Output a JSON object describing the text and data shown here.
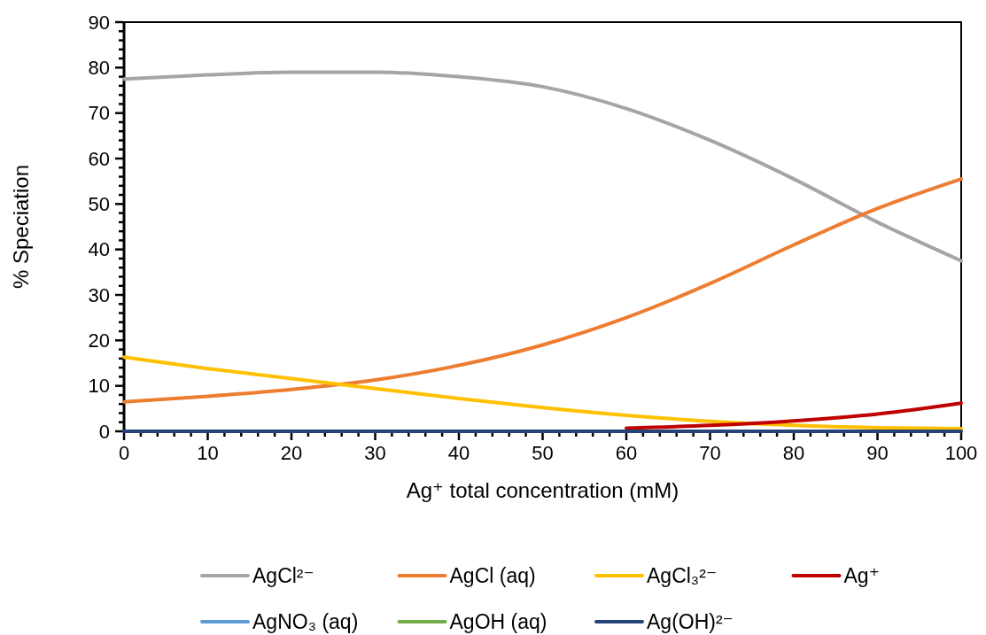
{
  "chart_data": {
    "type": "line",
    "xlabel": "Ag⁺ total concentration (mM)",
    "ylabel": "% Speciation",
    "x": [
      0,
      10,
      20,
      30,
      40,
      50,
      60,
      70,
      80,
      90,
      100
    ],
    "xlim": [
      0,
      100
    ],
    "xticks": [
      0,
      {
        "value": 2,
        "label": null
      },
      {
        "value": 4,
        "label": null
      },
      {
        "value": 6,
        "label": null
      },
      {
        "value": 8,
        "label": null
      },
      10,
      {
        "value": 12,
        "label": null
      },
      {
        "value": 14,
        "label": null
      },
      {
        "value": 16,
        "label": null
      },
      {
        "value": 18,
        "label": null
      },
      20,
      {
        "value": 22,
        "label": null
      },
      {
        "value": 24,
        "label": null
      },
      {
        "value": 26,
        "label": null
      },
      {
        "value": 28,
        "label": null
      },
      30,
      {
        "value": 32,
        "label": null
      },
      {
        "value": 34,
        "label": null
      },
      {
        "value": 36,
        "label": null
      },
      {
        "value": 38,
        "label": null
      },
      40,
      {
        "value": 42,
        "label": null
      },
      {
        "value": 44,
        "label": null
      },
      {
        "value": 46,
        "label": null
      },
      {
        "value": 48,
        "label": null
      },
      50,
      {
        "value": 52,
        "label": null
      },
      {
        "value": 54,
        "label": null
      },
      {
        "value": 56,
        "label": null
      },
      {
        "value": 58,
        "label": null
      },
      60,
      {
        "value": 62,
        "label": null
      },
      {
        "value": 64,
        "label": null
      },
      {
        "value": 66,
        "label": null
      },
      {
        "value": 68,
        "label": null
      },
      70,
      {
        "value": 72,
        "label": null
      },
      {
        "value": 74,
        "label": null
      },
      {
        "value": 76,
        "label": null
      },
      {
        "value": 78,
        "label": null
      },
      80,
      {
        "value": 82,
        "label": null
      },
      {
        "value": 84,
        "label": null
      },
      {
        "value": 86,
        "label": null
      },
      {
        "value": 88,
        "label": null
      },
      90,
      {
        "value": 92,
        "label": null
      },
      {
        "value": 94,
        "label": null
      },
      {
        "value": 96,
        "label": null
      },
      {
        "value": 98,
        "label": null
      },
      100
    ],
    "ylim": [
      0,
      90
    ],
    "yticks": [
      0,
      {
        "value": 2,
        "label": null
      },
      {
        "value": 4,
        "label": null
      },
      {
        "value": 6,
        "label": null
      },
      {
        "value": 8,
        "label": null
      },
      10,
      {
        "value": 12,
        "label": null
      },
      {
        "value": 14,
        "label": null
      },
      {
        "value": 16,
        "label": null
      },
      {
        "value": 18,
        "label": null
      },
      20,
      {
        "value": 22,
        "label": null
      },
      {
        "value": 24,
        "label": null
      },
      {
        "value": 26,
        "label": null
      },
      {
        "value": 28,
        "label": null
      },
      30,
      {
        "value": 32,
        "label": null
      },
      {
        "value": 34,
        "label": null
      },
      {
        "value": 36,
        "label": null
      },
      {
        "value": 38,
        "label": null
      },
      40,
      {
        "value": 42,
        "label": null
      },
      {
        "value": 44,
        "label": null
      },
      {
        "value": 46,
        "label": null
      },
      {
        "value": 48,
        "label": null
      },
      50,
      {
        "value": 52,
        "label": null
      },
      {
        "value": 54,
        "label": null
      },
      {
        "value": 56,
        "label": null
      },
      {
        "value": 58,
        "label": null
      },
      60,
      {
        "value": 62,
        "label": null
      },
      {
        "value": 64,
        "label": null
      },
      {
        "value": 66,
        "label": null
      },
      {
        "value": 68,
        "label": null
      },
      70,
      {
        "value": 72,
        "label": null
      },
      {
        "value": 74,
        "label": null
      },
      {
        "value": 76,
        "label": null
      },
      {
        "value": 78,
        "label": null
      },
      80,
      {
        "value": 82,
        "label": null
      },
      {
        "value": 84,
        "label": null
      },
      {
        "value": 86,
        "label": null
      },
      {
        "value": 88,
        "label": null
      },
      90
    ],
    "grid": false,
    "legend": "bottom",
    "marker": "none",
    "line_style": "solid",
    "series": [
      {
        "name": "AgCl²⁻",
        "color": "#a5a5a5",
        "values": [
          77.5,
          78.4,
          79,
          79,
          78,
          75.8,
          71,
          64,
          55.5,
          46,
          37.5
        ]
      },
      {
        "name": "AgCl (aq)",
        "color": "#ed7d31",
        "values": [
          6.5,
          7.7,
          9.2,
          11.3,
          14.5,
          19,
          25,
          32.5,
          41,
          49,
          55.5
        ]
      },
      {
        "name": "AgCl₃²⁻",
        "color": "#ffc000",
        "values": [
          16.3,
          13.8,
          11.6,
          9.4,
          7.2,
          5.2,
          3.5,
          2.2,
          1.3,
          0.8,
          0.6
        ]
      },
      {
        "name": "Ag⁺",
        "color": "#c00000",
        "values": [
          null,
          null,
          null,
          null,
          null,
          null,
          0.7,
          1.3,
          2.3,
          3.8,
          6.2
        ]
      },
      {
        "name": "AgNO₃ (aq)",
        "color": "#5b9bd5",
        "values": [
          null,
          null,
          null,
          null,
          null,
          null,
          null,
          null,
          null,
          null,
          null
        ]
      },
      {
        "name": "AgOH (aq)",
        "color": "#70ad47",
        "values": [
          null,
          null,
          null,
          null,
          null,
          null,
          null,
          null,
          null,
          null,
          null
        ]
      },
      {
        "name": "Ag(OH)²⁻",
        "color": "#264478",
        "values": [
          0,
          0,
          0,
          0,
          0,
          0,
          0,
          0,
          0,
          0,
          0
        ]
      }
    ]
  }
}
